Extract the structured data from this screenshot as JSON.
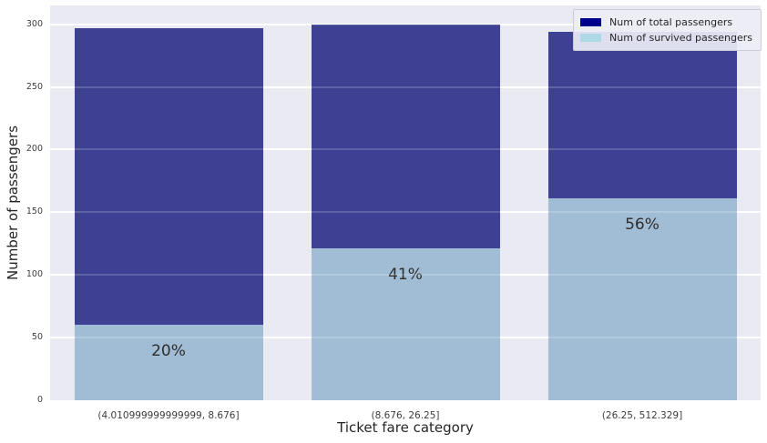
{
  "chart_data": {
    "type": "bar",
    "mode": "overlay",
    "title": "",
    "xlabel": "Ticket fare category",
    "ylabel": "Number of passengers",
    "categories": [
      "(4.010999999999999, 8.676]",
      "(8.676, 26.25]",
      "(26.25, 512.329]"
    ],
    "series": [
      {
        "name": "Num of total passengers",
        "bar_color": "#3d4093",
        "legend_color": "#00008b",
        "values": [
          297,
          300,
          294
        ]
      },
      {
        "name": "Num of survived passengers",
        "bar_color": "#a1bcd5",
        "legend_color": "#add8e6",
        "values": [
          60,
          121,
          161
        ]
      }
    ],
    "bar_labels": [
      "20%",
      "41%",
      "56%"
    ],
    "yticks": [
      0,
      50,
      100,
      150,
      200,
      250,
      300
    ],
    "ylim": [
      0,
      315
    ],
    "grid": true,
    "legend_position": "upper right",
    "style": {
      "axes_background": "#eaeaf2",
      "gridline_color": "#ffffff",
      "figure_background": "#ffffff",
      "tick_label_color": "#3d3d3d",
      "text_color": "#262626"
    }
  }
}
